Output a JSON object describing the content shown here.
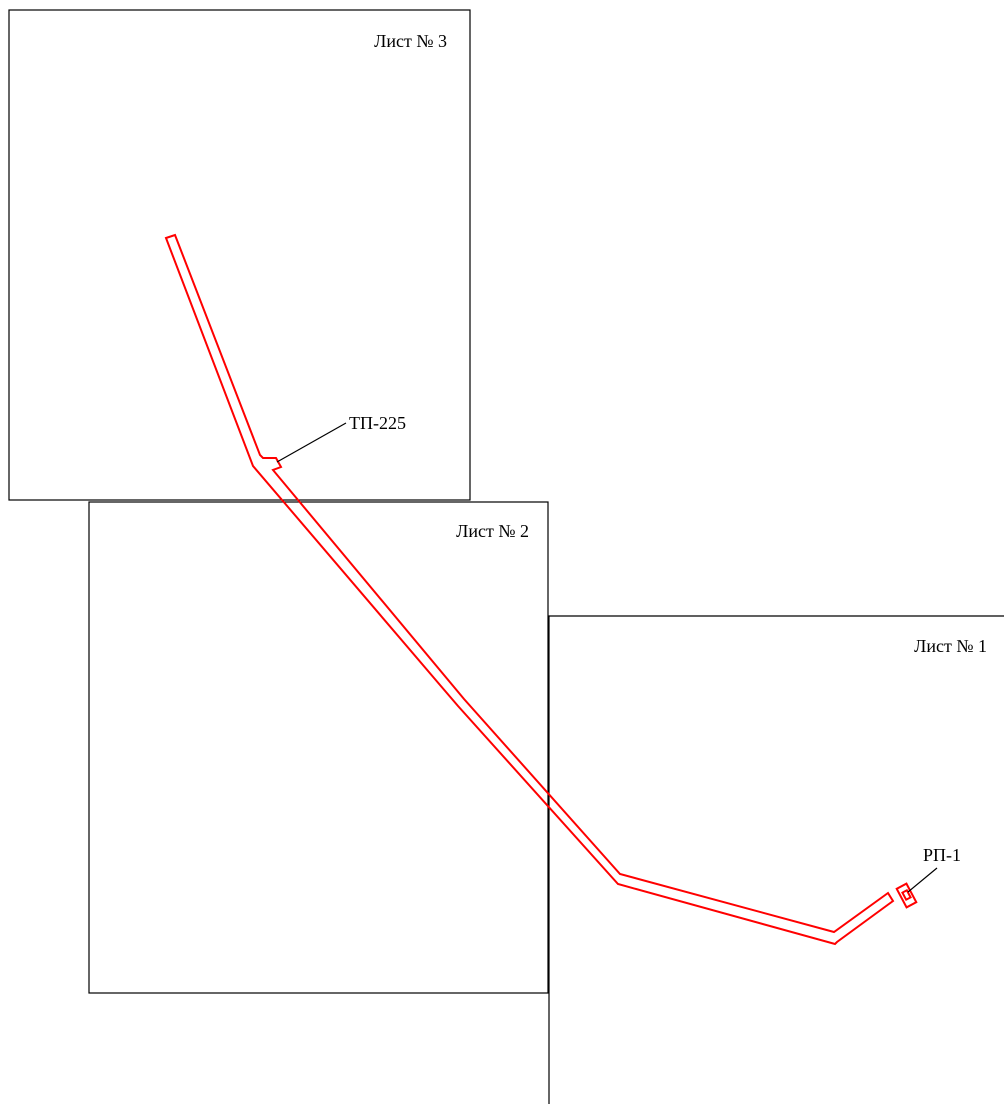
{
  "colors": {
    "frame": "#000000",
    "route": "#ff0000",
    "text": "#000000",
    "background": "#ffffff"
  },
  "sheets": [
    {
      "id": "sheet-3",
      "label": "Лист № 3"
    },
    {
      "id": "sheet-2",
      "label": "Лист № 2"
    },
    {
      "id": "sheet-1",
      "label": "Лист № 1"
    }
  ],
  "callouts": [
    {
      "id": "tp-225",
      "label": "ТП-225"
    },
    {
      "id": "rp-1",
      "label": "РП-1"
    }
  ]
}
